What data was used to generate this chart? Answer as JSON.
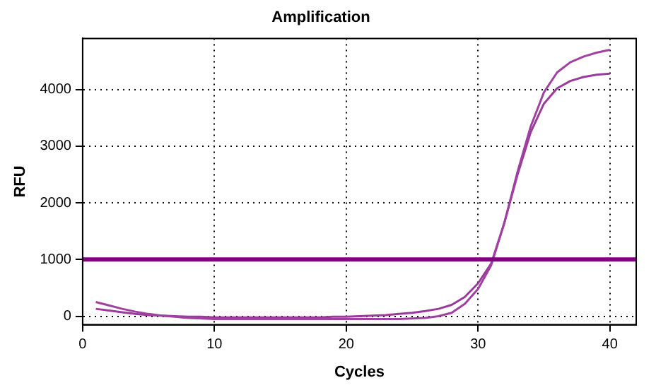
{
  "chart_data": {
    "type": "line",
    "title": "Amplification",
    "xlabel": "Cycles",
    "ylabel": "RFU",
    "x": [
      1,
      2,
      3,
      4,
      5,
      6,
      7,
      8,
      9,
      10,
      11,
      12,
      13,
      14,
      15,
      16,
      17,
      18,
      19,
      20,
      21,
      22,
      23,
      24,
      25,
      26,
      27,
      28,
      29,
      30,
      31,
      32,
      33,
      34,
      35,
      36,
      37,
      38,
      39,
      40
    ],
    "series": [
      {
        "color": "#a040a0",
        "values": [
          250,
          190,
          130,
          80,
          40,
          10,
          -10,
          -30,
          -40,
          -50,
          -50,
          -50,
          -50,
          -50,
          -50,
          -50,
          -50,
          -50,
          -50,
          -50,
          -50,
          -50,
          -50,
          -50,
          -40,
          -30,
          0,
          60,
          220,
          480,
          900,
          1650,
          2550,
          3350,
          3950,
          4300,
          4480,
          4580,
          4650,
          4700
        ]
      },
      {
        "color": "#9a3a9a",
        "values": [
          130,
          100,
          70,
          40,
          20,
          10,
          0,
          -10,
          -10,
          -20,
          -20,
          -20,
          -20,
          -20,
          -20,
          -20,
          -20,
          -20,
          -10,
          -10,
          0,
          10,
          20,
          40,
          60,
          90,
          130,
          200,
          340,
          580,
          930,
          1650,
          2500,
          3250,
          3750,
          4020,
          4150,
          4220,
          4260,
          4280
        ]
      }
    ],
    "xlim": [
      0,
      42
    ],
    "xticks": [
      0,
      10,
      20,
      30,
      40
    ],
    "ylim": [
      -150,
      4900
    ],
    "yticks": [
      0,
      1000,
      2000,
      3000,
      4000
    ],
    "ref_lines": [
      {
        "axis": "y",
        "value": 1000,
        "color": "#800080"
      }
    ],
    "grid": true,
    "legend": false,
    "marker": "none",
    "line_style": "solid"
  }
}
